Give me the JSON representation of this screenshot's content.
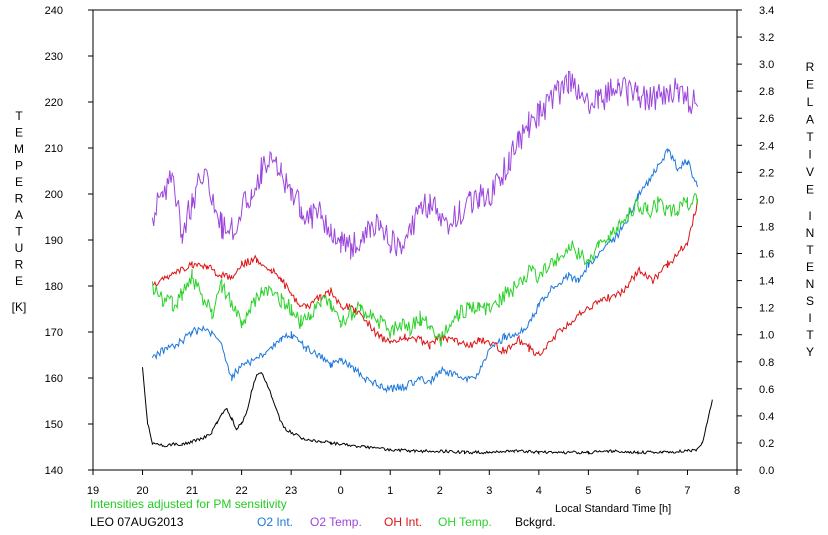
{
  "chart_data": {
    "type": "line",
    "title": "",
    "xlabel": "Local Standard Time [h]",
    "ylabel": "TEMPERATURE [K]",
    "y2label": "RELATIVE INTENSITY",
    "left_axis_letters": [
      "T",
      "E",
      "M",
      "P",
      "E",
      "R",
      "A",
      "T",
      "U",
      "R",
      "E",
      "[K]"
    ],
    "right_axis_letters": [
      "R",
      "E",
      "L",
      "A",
      "T",
      "I",
      "V",
      "E",
      "I",
      "N",
      "T",
      "E",
      "N",
      "S",
      "I",
      "T",
      "Y"
    ],
    "x_ticks": [
      "19",
      "20",
      "21",
      "22",
      "23",
      "0",
      "1",
      "2",
      "3",
      "4",
      "5",
      "6",
      "7",
      "8"
    ],
    "xlim": [
      19,
      32
    ],
    "ylim": [
      140,
      240
    ],
    "y_ticks": [
      140,
      150,
      160,
      170,
      180,
      190,
      200,
      210,
      220,
      230,
      240
    ],
    "y2lim": [
      0.0,
      3.4
    ],
    "y2_ticks": [
      "0.0",
      "0.2",
      "0.4",
      "0.6",
      "0.8",
      "1.0",
      "1.2",
      "1.4",
      "1.6",
      "1.8",
      "2.0",
      "2.2",
      "2.4",
      "2.6",
      "2.8",
      "3.0",
      "3.2",
      "3.4"
    ],
    "note": "Intensities adjusted for PM sensitivity",
    "station_date": "LEO 07AUG2013",
    "series": [
      {
        "name": "O2 Int.",
        "axis": "right",
        "color": "#1e78dc",
        "x": [
          20.2,
          20.5,
          20.8,
          21.0,
          21.3,
          21.6,
          21.8,
          22.0,
          22.3,
          22.6,
          22.8,
          23.0,
          23.3,
          23.6,
          23.8,
          24.0,
          24.3,
          24.6,
          24.8,
          25.0,
          25.3,
          25.6,
          25.8,
          26.0,
          26.3,
          26.6,
          26.8,
          27.0,
          27.3,
          27.6,
          27.8,
          28.0,
          28.3,
          28.6,
          28.8,
          29.0,
          29.3,
          29.6,
          29.8,
          30.0,
          30.3,
          30.6,
          30.8,
          31.0,
          31.2
        ],
        "values": [
          0.84,
          0.9,
          0.95,
          1.02,
          1.05,
          0.92,
          0.68,
          0.78,
          0.82,
          0.9,
          0.96,
          1.0,
          0.9,
          0.84,
          0.78,
          0.82,
          0.74,
          0.65,
          0.62,
          0.6,
          0.62,
          0.68,
          0.64,
          0.74,
          0.7,
          0.66,
          0.72,
          0.88,
          0.98,
          1.0,
          1.08,
          1.22,
          1.36,
          1.44,
          1.4,
          1.52,
          1.62,
          1.74,
          1.86,
          2.02,
          2.18,
          2.36,
          2.24,
          2.28,
          2.1
        ]
      },
      {
        "name": "O2 Temp.",
        "axis": "left",
        "color": "#9b46dc",
        "x": [
          20.2,
          20.4,
          20.6,
          20.8,
          21.0,
          21.2,
          21.4,
          21.6,
          21.8,
          22.0,
          22.2,
          22.4,
          22.6,
          22.8,
          23.0,
          23.2,
          23.4,
          23.6,
          23.8,
          24.0,
          24.2,
          24.4,
          24.6,
          24.8,
          25.0,
          25.2,
          25.4,
          25.6,
          25.8,
          26.0,
          26.2,
          26.4,
          26.6,
          26.8,
          27.0,
          27.2,
          27.4,
          27.6,
          27.8,
          28.0,
          28.2,
          28.4,
          28.6,
          28.8,
          29.0,
          29.2,
          29.4,
          29.6,
          29.8,
          30.0,
          30.2,
          30.4,
          30.6,
          30.8,
          31.0,
          31.2
        ],
        "values": [
          195,
          200,
          203,
          192,
          198,
          205,
          200,
          193,
          192,
          197,
          200,
          205,
          210,
          204,
          200,
          197,
          195,
          196,
          192,
          190,
          188,
          190,
          192,
          193,
          190,
          188,
          192,
          197,
          198,
          195,
          194,
          196,
          198,
          200,
          200,
          203,
          207,
          212,
          215,
          217,
          220,
          222,
          224,
          222,
          219,
          220,
          222,
          224,
          222,
          222,
          220,
          221,
          222,
          223,
          221,
          219
        ]
      },
      {
        "name": "OH Int.",
        "axis": "right",
        "color": "#dc1414",
        "x": [
          20.2,
          20.5,
          20.8,
          21.0,
          21.3,
          21.6,
          21.8,
          22.0,
          22.3,
          22.6,
          22.8,
          23.0,
          23.3,
          23.6,
          23.8,
          24.0,
          24.3,
          24.6,
          24.8,
          25.0,
          25.3,
          25.6,
          25.8,
          26.0,
          26.3,
          26.6,
          26.8,
          27.0,
          27.3,
          27.6,
          27.8,
          28.0,
          28.3,
          28.6,
          28.8,
          29.0,
          29.3,
          29.6,
          29.8,
          30.0,
          30.3,
          30.6,
          30.8,
          31.0,
          31.2
        ],
        "values": [
          1.36,
          1.42,
          1.48,
          1.52,
          1.5,
          1.44,
          1.42,
          1.52,
          1.56,
          1.48,
          1.42,
          1.28,
          1.2,
          1.28,
          1.32,
          1.22,
          1.18,
          1.06,
          0.98,
          0.96,
          0.98,
          0.96,
          0.92,
          0.98,
          0.95,
          0.92,
          0.96,
          0.94,
          0.88,
          0.96,
          0.9,
          0.86,
          0.98,
          1.08,
          1.14,
          1.2,
          1.26,
          1.3,
          1.36,
          1.48,
          1.4,
          1.52,
          1.6,
          1.68,
          1.98
        ]
      },
      {
        "name": "OH Temp.",
        "axis": "left",
        "color": "#2ad22a",
        "x": [
          20.2,
          20.4,
          20.6,
          20.8,
          21.0,
          21.2,
          21.4,
          21.6,
          21.8,
          22.0,
          22.2,
          22.4,
          22.6,
          22.8,
          23.0,
          23.2,
          23.4,
          23.6,
          23.8,
          24.0,
          24.2,
          24.4,
          24.6,
          24.8,
          25.0,
          25.2,
          25.4,
          25.6,
          25.8,
          26.0,
          26.2,
          26.4,
          26.6,
          26.8,
          27.0,
          27.2,
          27.4,
          27.6,
          27.8,
          28.0,
          28.2,
          28.4,
          28.6,
          28.8,
          29.0,
          29.2,
          29.4,
          29.6,
          29.8,
          30.0,
          30.2,
          30.4,
          30.6,
          30.8,
          31.0,
          31.2
        ],
        "values": [
          180,
          177,
          176,
          178,
          182,
          178,
          174,
          180,
          176,
          172,
          176,
          178,
          180,
          177,
          175,
          172,
          174,
          177,
          176,
          172,
          174,
          175,
          174,
          172,
          170,
          172,
          171,
          173,
          171,
          168,
          172,
          174,
          175,
          176,
          175,
          177,
          179,
          180,
          183,
          182,
          184,
          186,
          189,
          187,
          185,
          188,
          190,
          193,
          195,
          198,
          196,
          198,
          196,
          197,
          198,
          199
        ]
      },
      {
        "name": "Bckgrd.",
        "axis": "right",
        "color": "#000000",
        "x": [
          20.0,
          20.1,
          20.2,
          20.4,
          20.6,
          20.8,
          21.0,
          21.2,
          21.4,
          21.5,
          21.6,
          21.7,
          21.8,
          21.9,
          22.0,
          22.1,
          22.2,
          22.3,
          22.4,
          22.5,
          22.6,
          22.7,
          22.8,
          22.9,
          23.0,
          23.2,
          23.4,
          23.6,
          23.8,
          24.0,
          24.5,
          25.0,
          25.5,
          26.0,
          26.5,
          27.0,
          27.5,
          28.0,
          28.5,
          29.0,
          29.5,
          30.0,
          30.5,
          31.0,
          31.2,
          31.3,
          31.4,
          31.5
        ],
        "values": [
          0.75,
          0.35,
          0.2,
          0.18,
          0.19,
          0.19,
          0.21,
          0.23,
          0.28,
          0.35,
          0.42,
          0.45,
          0.38,
          0.3,
          0.35,
          0.42,
          0.58,
          0.7,
          0.72,
          0.65,
          0.55,
          0.45,
          0.35,
          0.3,
          0.28,
          0.24,
          0.22,
          0.21,
          0.2,
          0.19,
          0.17,
          0.15,
          0.14,
          0.14,
          0.13,
          0.13,
          0.14,
          0.13,
          0.13,
          0.13,
          0.14,
          0.13,
          0.13,
          0.14,
          0.15,
          0.2,
          0.35,
          0.52
        ]
      }
    ]
  }
}
